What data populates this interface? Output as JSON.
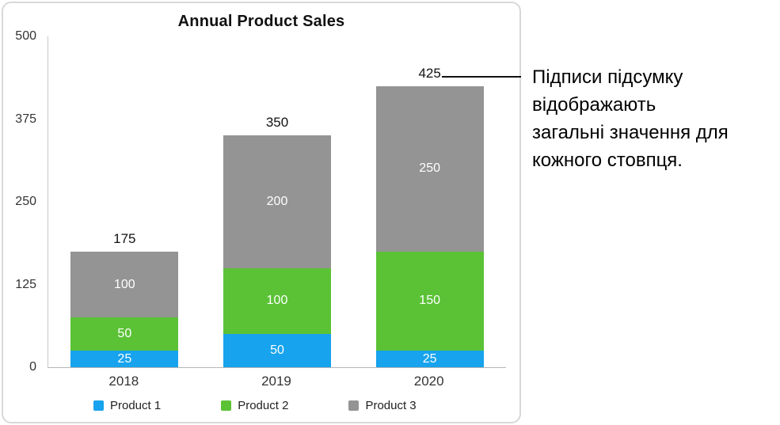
{
  "chart_data": {
    "type": "bar",
    "stacked": true,
    "title": "Annual Product Sales",
    "categories": [
      "2018",
      "2019",
      "2020"
    ],
    "series": [
      {
        "name": "Product 1",
        "color": "#17A3ED",
        "values": [
          25,
          50,
          25
        ]
      },
      {
        "name": "Product 2",
        "color": "#5BC236",
        "values": [
          50,
          100,
          150
        ]
      },
      {
        "name": "Product 3",
        "color": "#949494",
        "values": [
          100,
          200,
          250
        ]
      }
    ],
    "totals": [
      175,
      350,
      425
    ],
    "ylim": [
      0,
      500
    ],
    "yticks": [
      500,
      375,
      250,
      125,
      0
    ],
    "grid": false,
    "legend_position": "bottom"
  },
  "callout": {
    "text": "Підписи підсумку відображають загальні значення для кожного стовпця.",
    "lines": [
      "Підписи підсумку",
      "відображають",
      "загальні значення для",
      "кожного стовпця."
    ]
  }
}
